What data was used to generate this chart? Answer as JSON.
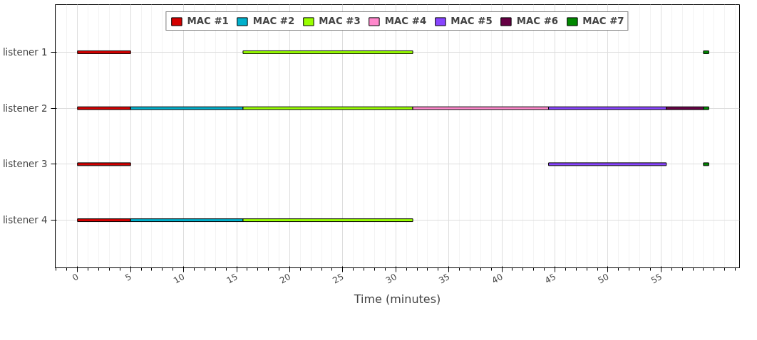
{
  "chart_data": {
    "type": "bar",
    "orientation": "horizontal",
    "xlabel": "Time (minutes)",
    "categories": [
      "listener 1",
      "listener 2",
      "listener 3",
      "listener 4"
    ],
    "series": [
      {
        "name": "MAC #1",
        "color": "#d40000",
        "base": [
          0,
          0,
          0,
          0
        ],
        "values": [
          5,
          5,
          5,
          5
        ]
      },
      {
        "name": "MAC #2",
        "color": "#00b0cc",
        "base": [
          null,
          5,
          null,
          5
        ],
        "values": [
          null,
          10.6,
          null,
          10.6
        ]
      },
      {
        "name": "MAC #3",
        "color": "#99ff00",
        "base": [
          15.6,
          15.6,
          null,
          15.6
        ],
        "values": [
          16,
          16,
          null,
          16
        ]
      },
      {
        "name": "MAC #4",
        "color": "#ff88cc",
        "base": [
          null,
          31.6,
          null,
          null
        ],
        "values": [
          null,
          12.8,
          null,
          null
        ]
      },
      {
        "name": "MAC #5",
        "color": "#8844ff",
        "base": [
          null,
          44.4,
          44.4,
          null
        ],
        "values": [
          null,
          11.1,
          11.1,
          null
        ]
      },
      {
        "name": "MAC #6",
        "color": "#660044",
        "base": [
          null,
          55.5,
          null,
          null
        ],
        "values": [
          null,
          3.5,
          null,
          null
        ]
      },
      {
        "name": "MAC #7",
        "color": "#008800",
        "base": [
          59,
          59,
          59,
          null
        ],
        "values": [
          0.5,
          0.5,
          0.5,
          null
        ]
      }
    ],
    "xlim": [
      -2.1,
      62.4
    ],
    "xticks": [
      0,
      5,
      10,
      15,
      20,
      25,
      30,
      35,
      40,
      45,
      50,
      55
    ],
    "grid": true,
    "legend": "top"
  }
}
